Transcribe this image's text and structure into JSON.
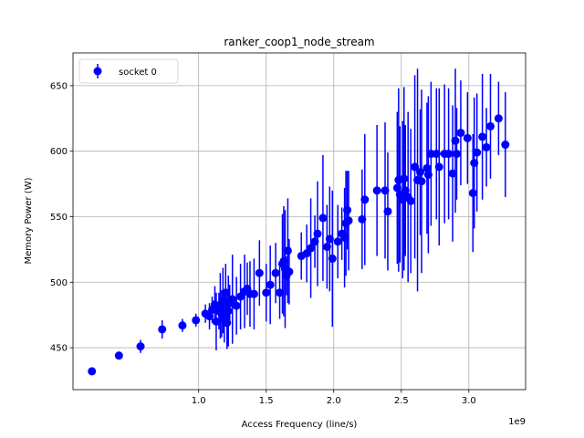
{
  "chart_data": {
    "type": "scatter",
    "title": "ranker_coop1_node_stream",
    "xlabel": "Access Frequency (line/s)",
    "ylabel": "Memory Power (W)",
    "x_offset_label": "1e9",
    "x_scale": 1000000000,
    "xlim": [
      0.07,
      3.42
    ],
    "ylim": [
      418,
      675
    ],
    "xticks": [
      1.0,
      1.5,
      2.0,
      2.5,
      3.0
    ],
    "xtick_labels": [
      "1.0",
      "1.5",
      "2.0",
      "2.5",
      "3.0"
    ],
    "yticks": [
      450,
      500,
      550,
      600,
      650
    ],
    "ytick_labels": [
      "450",
      "500",
      "550",
      "600",
      "650"
    ],
    "grid": true,
    "legend": {
      "position": "upper-left",
      "entries": [
        "socket 0"
      ]
    },
    "series": [
      {
        "name": "socket 0",
        "color": "#0000ff",
        "x": [
          0.21,
          0.41,
          0.57,
          0.73,
          0.88,
          0.98,
          1.05,
          1.08,
          1.1,
          1.12,
          1.13,
          1.15,
          1.16,
          1.17,
          1.18,
          1.19,
          1.2,
          1.21,
          1.22,
          1.23,
          1.25,
          1.28,
          1.31,
          1.34,
          1.36,
          1.38,
          1.41,
          1.45,
          1.5,
          1.53,
          1.57,
          1.6,
          1.62,
          1.63,
          1.64,
          1.65,
          1.66,
          1.67,
          1.76,
          1.8,
          1.83,
          1.86,
          1.88,
          1.92,
          1.95,
          1.97,
          1.99,
          2.03,
          2.06,
          2.08,
          2.09,
          2.1,
          2.11,
          2.21,
          2.23,
          2.32,
          2.38,
          2.4,
          2.47,
          2.48,
          2.49,
          2.51,
          2.52,
          2.53,
          2.55,
          2.57,
          2.6,
          2.62,
          2.64,
          2.65,
          2.69,
          2.7,
          2.72,
          2.76,
          2.78,
          2.82,
          2.85,
          2.88,
          2.9,
          2.91,
          2.94,
          2.99,
          3.03,
          3.04,
          3.06,
          3.1,
          3.13,
          3.16,
          3.22,
          3.27
        ],
        "y": [
          432,
          444,
          451,
          464,
          467,
          471,
          476,
          474,
          479,
          483,
          470,
          478,
          482,
          476,
          486,
          472,
          492,
          469,
          478,
          484,
          487,
          482,
          489,
          493,
          495,
          491,
          491,
          507,
          492,
          498,
          507,
          492,
          514,
          516,
          510,
          505,
          524,
          508,
          520,
          522,
          526,
          531,
          537,
          549,
          527,
          533,
          518,
          531,
          537,
          534,
          545,
          555,
          547,
          548,
          563,
          570,
          570,
          554,
          572,
          578,
          567,
          563,
          579,
          570,
          565,
          562,
          588,
          578,
          584,
          577,
          587,
          582,
          598,
          598,
          588,
          598,
          598,
          583,
          608,
          598,
          614,
          610,
          568,
          591,
          599,
          611,
          603,
          619,
          625,
          605
        ],
        "yerr": [
          2,
          3,
          5,
          7,
          5,
          5,
          7,
          10,
          10,
          14,
          22,
          14,
          25,
          18,
          25,
          18,
          22,
          20,
          27,
          14,
          34,
          22,
          25,
          28,
          20,
          25,
          27,
          25,
          22,
          30,
          23,
          20,
          38,
          42,
          45,
          15,
          40,
          25,
          18,
          22,
          38,
          20,
          40,
          48,
          32,
          40,
          52,
          28,
          20,
          38,
          40,
          30,
          38,
          38,
          50,
          50,
          52,
          45,
          58,
          70,
          52,
          60,
          70,
          50,
          65,
          55,
          70,
          85,
          48,
          70,
          50,
          60,
          55,
          50,
          60,
          53,
          50,
          52,
          55,
          35,
          40,
          35,
          45,
          50,
          45,
          48,
          30,
          40,
          28,
          40
        ]
      }
    ]
  }
}
